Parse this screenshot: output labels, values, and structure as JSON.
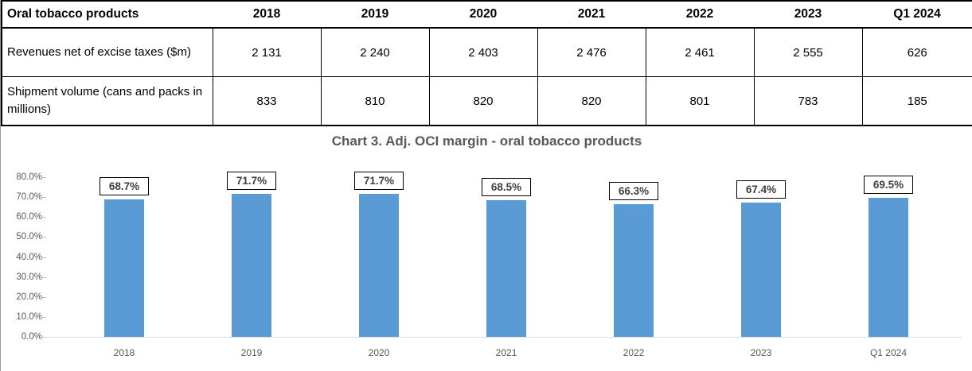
{
  "table": {
    "header": [
      "Oral tobacco products",
      "2018",
      "2019",
      "2020",
      "2021",
      "2022",
      "2023",
      "Q1 2024"
    ],
    "rows": [
      {
        "label": "Revenues net of excise taxes ($m)",
        "values": [
          "2 131",
          "2 240",
          "2 403",
          "2 476",
          "2 461",
          "2 555",
          "626"
        ]
      },
      {
        "label": "Shipment volume (cans and packs in millions)",
        "values": [
          "833",
          "810",
          "820",
          "820",
          "801",
          "783",
          "185"
        ]
      }
    ]
  },
  "chart_data": {
    "type": "bar",
    "title": "Chart 3. Adj. OCI margin - oral tobacco products",
    "categories": [
      "2018",
      "2019",
      "2020",
      "2021",
      "2022",
      "2023",
      "Q1 2024"
    ],
    "values": [
      68.7,
      71.7,
      71.7,
      68.5,
      66.3,
      67.4,
      69.5
    ],
    "data_labels": [
      "68.7%",
      "71.7%",
      "71.7%",
      "68.5%",
      "66.3%",
      "67.4%",
      "69.5%"
    ],
    "xlabel": "",
    "ylabel": "",
    "ylim": [
      0,
      80
    ],
    "ytick_step": 10,
    "ytick_labels": [
      "0.0%",
      "10.0%",
      "20.0%",
      "30.0%",
      "40.0%",
      "50.0%",
      "60.0%",
      "70.0%",
      "80.0%"
    ],
    "grid": false,
    "legend": null,
    "bar_color": "#5B9BD5",
    "axis_text_color": "#595959",
    "title_color": "#595959"
  }
}
